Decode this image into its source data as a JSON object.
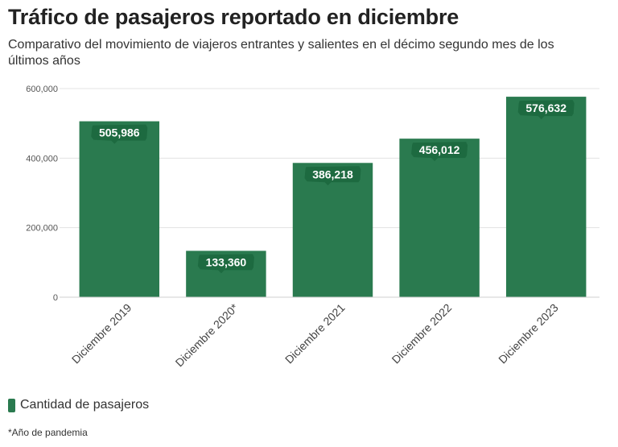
{
  "title": "Tráfico de pasajeros reportado en diciembre",
  "subtitle": "Comparativo del movimiento de viajeros entrantes y salientes en el décimo segundo mes de los últimos años",
  "legend_label": "Cantidad de pasajeros",
  "footnote": "*Año de pandemia",
  "colors": {
    "bar": "#2a7a4f",
    "label_bg": "#1d6a40",
    "grid": "#e3e3e3",
    "axis_text": "#555555"
  },
  "chart_data": {
    "type": "bar",
    "categories": [
      "Diciembre 2019",
      "Diciembre 2020*",
      "Diciembre 2021",
      "Diciembre 2022",
      "Diciembre 2023"
    ],
    "series": [
      {
        "name": "Cantidad de pasajeros",
        "values": [
          505986,
          133360,
          386218,
          456012,
          576632
        ]
      }
    ],
    "value_labels": [
      "505,986",
      "133,360",
      "386,218",
      "456,012",
      "576,632"
    ],
    "ylim": [
      0,
      600000
    ],
    "yticks": [
      0,
      200000,
      400000,
      600000
    ],
    "ytick_labels": [
      "0",
      "200,000",
      "400,000",
      "600,000"
    ],
    "grid": true,
    "legend_position": "bottom-left"
  }
}
